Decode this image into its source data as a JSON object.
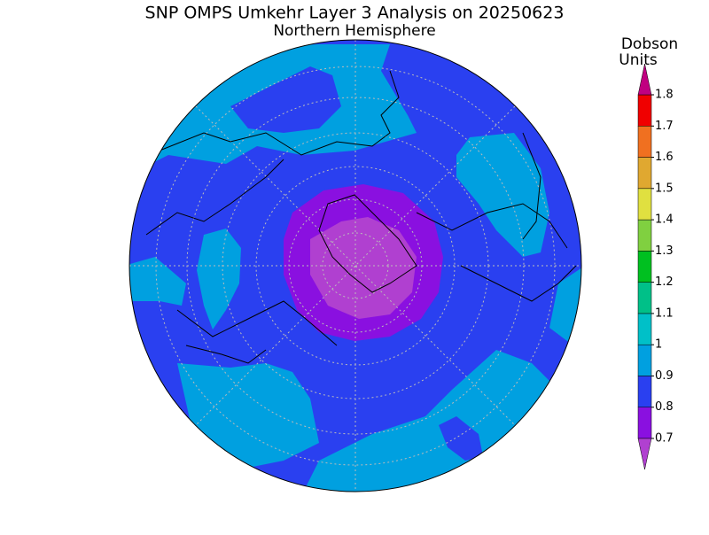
{
  "header": {
    "title": "SNP OMPS Umkehr Layer 3 Analysis on 20250623",
    "subtitle": "Northern Hemisphere"
  },
  "colorbar": {
    "title_lines": [
      "Dobson",
      "Units"
    ],
    "levels": [
      0.7,
      0.8,
      0.9,
      1,
      1.1,
      1.2,
      1.3,
      1.4,
      1.5,
      1.6,
      1.7,
      1.8
    ],
    "colors": [
      "#8a10e0",
      "#2a40f0",
      "#00a0e0",
      "#00c0c8",
      "#00c088",
      "#00c020",
      "#80d040",
      "#e0e040",
      "#e0a830",
      "#f07020",
      "#f00000"
    ],
    "under_color": "#b040d0",
    "over_color": "#c00080"
  }
}
